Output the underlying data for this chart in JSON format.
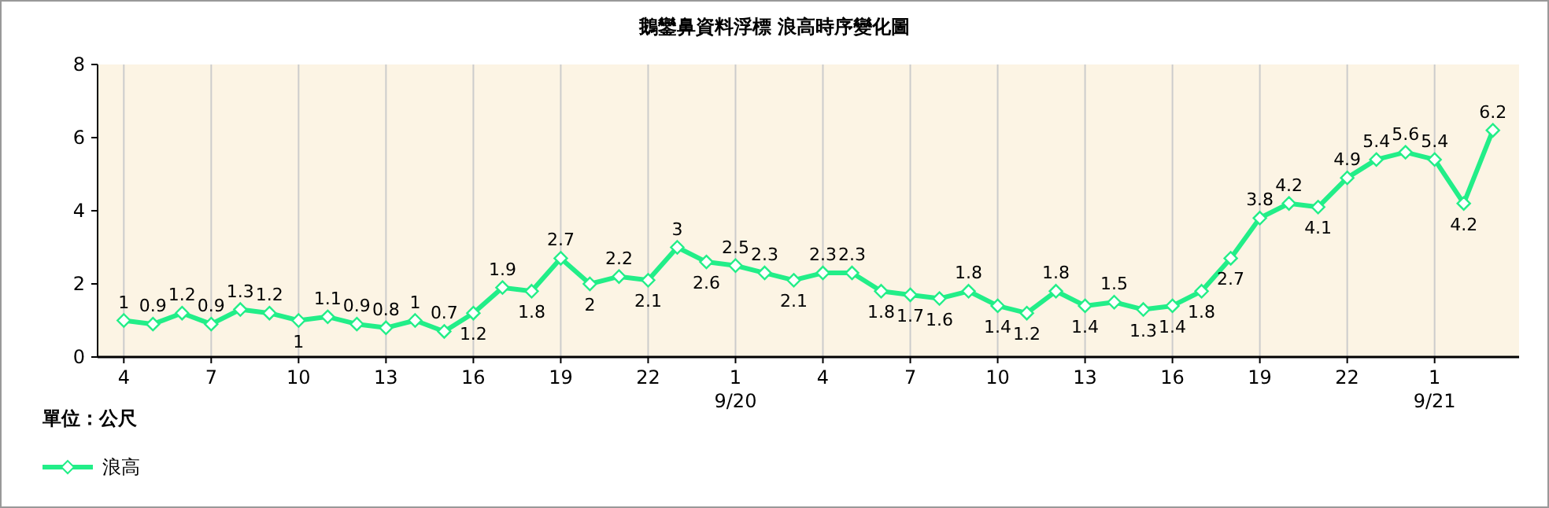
{
  "chart_data": {
    "type": "line",
    "title": "鵝鑾鼻資料浮標 浪高時序變化圖",
    "categories": [
      "4",
      null,
      null,
      "7",
      null,
      null,
      "10",
      null,
      null,
      "13",
      null,
      null,
      "16",
      null,
      null,
      "19",
      null,
      null,
      "22",
      null,
      null,
      "1\n9/20",
      null,
      null,
      "4",
      null,
      null,
      "7",
      null,
      null,
      "10",
      null,
      null,
      "13",
      null,
      null,
      "16",
      null,
      null,
      "19",
      null,
      null,
      "22",
      null,
      null,
      "1\n9/21",
      null,
      null
    ],
    "series": [
      {
        "name": "浪高",
        "color": "#22ee88",
        "values": [
          1,
          0.9,
          1.2,
          0.9,
          1.3,
          1.2,
          1,
          1.1,
          0.9,
          0.8,
          1,
          0.7,
          1.2,
          1.9,
          1.8,
          2.7,
          2,
          2.2,
          2.1,
          3,
          2.6,
          2.5,
          2.3,
          2.1,
          2.3,
          2.3,
          1.8,
          1.7,
          1.6,
          1.8,
          1.4,
          1.2,
          1.8,
          1.4,
          1.5,
          1.3,
          1.4,
          1.8,
          2.7,
          3.8,
          4.2,
          4.1,
          4.9,
          5.4,
          5.6,
          5.4,
          4.2,
          6.2
        ]
      }
    ],
    "ylim": [
      0,
      8
    ],
    "yticks": [
      0,
      2,
      4,
      6,
      8
    ],
    "grid": "x",
    "marker": "diamond",
    "line_style": "solid",
    "data_labels": true,
    "legend": "bottom left",
    "annotations": [
      "單位：公尺"
    ]
  }
}
